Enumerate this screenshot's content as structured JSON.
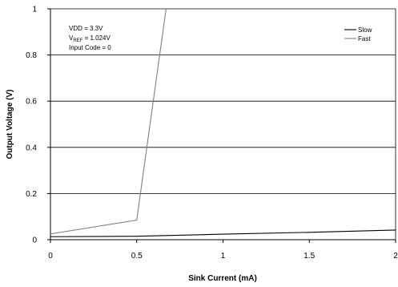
{
  "chart_data": {
    "type": "line",
    "xlabel": "Sink Current (mA)",
    "ylabel": "Output Voltage (V)",
    "xlim": [
      0,
      2
    ],
    "ylim": [
      0,
      1
    ],
    "x_ticks": [
      "0",
      "0.5",
      "1",
      "1.5",
      "2"
    ],
    "y_ticks": [
      "0",
      "0.2",
      "0.4",
      "0.6",
      "0.8",
      "1"
    ],
    "x_tick_values": [
      0,
      0.5,
      1,
      1.5,
      2
    ],
    "y_tick_values": [
      0,
      0.2,
      0.4,
      0.6,
      0.8,
      1
    ],
    "grid": "horizontal",
    "legend_position": "top-right",
    "annotations": {
      "vdd": "VDD = 3.3V",
      "vref_prefix": "V",
      "vref_sub": "REF",
      "vref_suffix": " = 1.024V",
      "input_code": "Input Code = 0"
    },
    "series": [
      {
        "name": "Slow",
        "color": "#000000",
        "x": [
          0,
          0.5,
          1,
          1.5,
          2
        ],
        "y": [
          0.013,
          0.015,
          0.024,
          0.032,
          0.042
        ]
      },
      {
        "name": "Fast",
        "color": "#808080",
        "x": [
          0,
          0.5,
          0.67
        ],
        "y": [
          0.025,
          0.085,
          1.0
        ]
      }
    ]
  }
}
